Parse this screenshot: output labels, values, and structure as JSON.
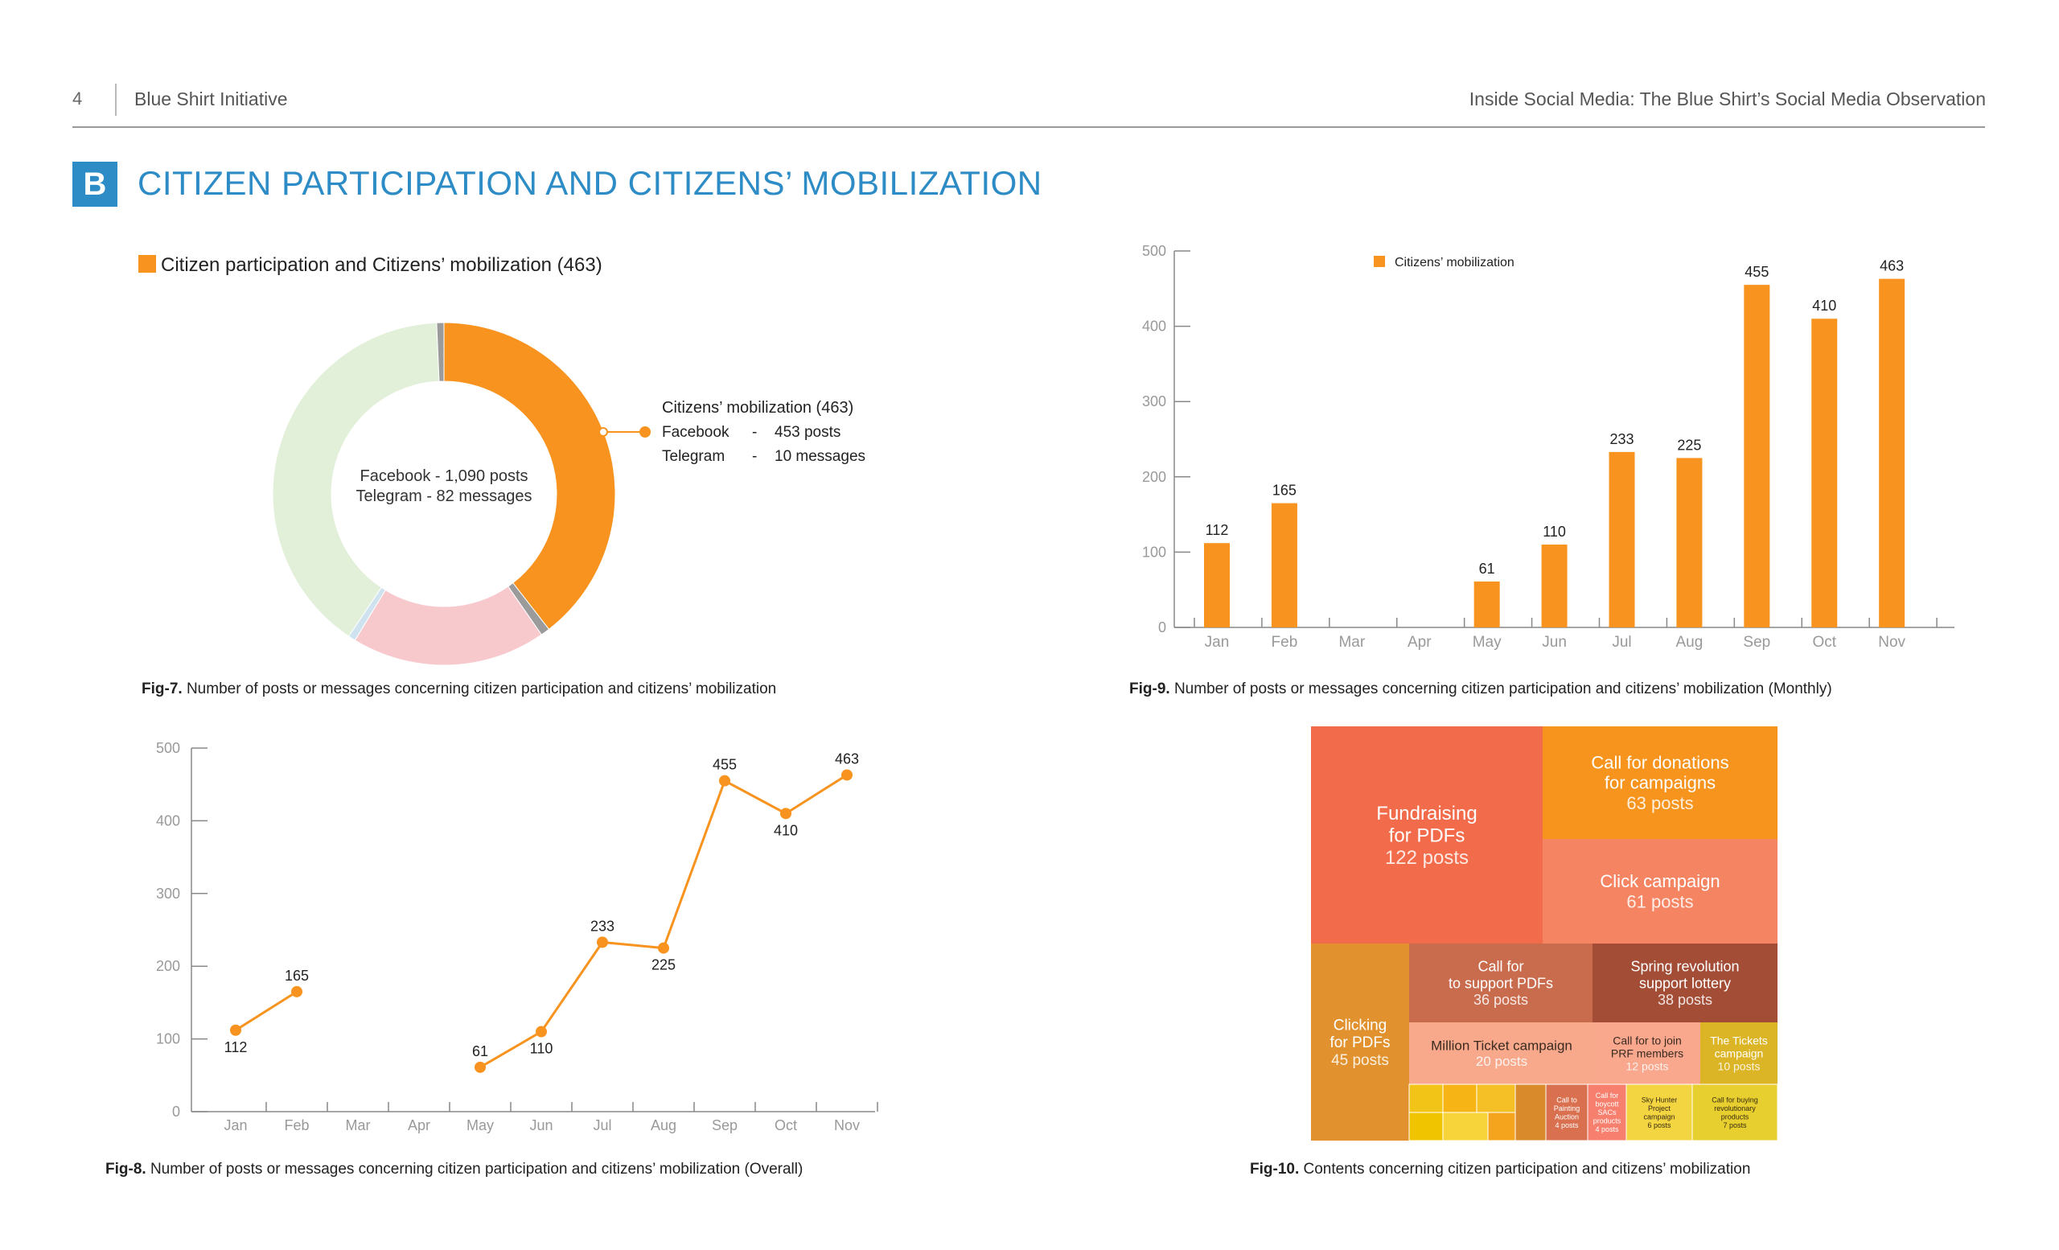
{
  "header": {
    "page_number": "4",
    "left_title": "Blue Shirt Initiative",
    "right_title": "Inside Social Media: The Blue Shirt’s Social Media Observation"
  },
  "section": {
    "badge": "B",
    "title": "CITIZEN PARTICIPATION AND CITIZENS’ MOBILIZATION"
  },
  "colors": {
    "accent_blue": "#2d8cc6",
    "orange": "#f7931e",
    "light_green": "#e2efd9",
    "light_pink": "#f7c9cc",
    "light_blue": "#cfe2f0",
    "axis_gray": "#888888"
  },
  "figures": {
    "fig7": {
      "label": "Fig-7.",
      "text": "Number of posts or messages concerning citizen participation and citizens’ mobilization"
    },
    "fig8": {
      "label": "Fig-8.",
      "text": "Number of posts or messages concerning citizen participation and citizens’ mobilization (Overall)"
    },
    "fig9": {
      "label": "Fig-9.",
      "text": "Number of posts or messages concerning citizen participation and citizens’ mobilization  (Monthly)"
    },
    "fig10": {
      "label": "Fig-10.",
      "text": "Contents concerning citizen participation and citizens’ mobilization"
    }
  },
  "chart_data": [
    {
      "id": "fig7",
      "type": "pie",
      "legend": "Citizen participation and Citizens’ mobilization (463)",
      "center_lines": [
        "Facebook - 1,090 posts",
        "Telegram - 82 messages"
      ],
      "callout": {
        "title": "Citizens’ mobilization (463)",
        "rows": [
          {
            "platform": "Facebook",
            "dash": "-",
            "value": "453 posts"
          },
          {
            "platform": "Telegram",
            "dash": "-",
            "value": "10 messages"
          }
        ]
      },
      "slices": [
        {
          "value": 463,
          "color": "#f7931e"
        },
        {
          "value": 10,
          "color": "#9b9b9b"
        },
        {
          "value": 215,
          "color": "#f7c9cc"
        },
        {
          "value": 8,
          "color": "#cfe2f0"
        },
        {
          "value": 468,
          "color": "#e2efd9"
        },
        {
          "value": 8,
          "color": "#9b9b9b"
        }
      ]
    },
    {
      "id": "fig8",
      "type": "line",
      "categories": [
        "Jan",
        "Feb",
        "Mar",
        "Apr",
        "May",
        "Jun",
        "Jul",
        "Aug",
        "Sep",
        "Oct",
        "Nov"
      ],
      "values": [
        112,
        165,
        null,
        null,
        61,
        110,
        233,
        225,
        455,
        410,
        463
      ],
      "ylim": [
        0,
        500
      ],
      "yticks": [
        0,
        100,
        200,
        300,
        400,
        500
      ],
      "color": "#f7931e"
    },
    {
      "id": "fig9",
      "type": "bar",
      "legend": "Citizens’ mobilization",
      "categories": [
        "Jan",
        "Feb",
        "Mar",
        "Apr",
        "May",
        "Jun",
        "Jul",
        "Aug",
        "Sep",
        "Oct",
        "Nov"
      ],
      "values": [
        112,
        165,
        null,
        null,
        61,
        110,
        233,
        225,
        455,
        410,
        463
      ],
      "ylim": [
        0,
        500
      ],
      "yticks": [
        0,
        100,
        200,
        300,
        400,
        500
      ],
      "color": "#f7931e"
    },
    {
      "id": "fig10",
      "type": "treemap",
      "main": [
        {
          "lines": [
            "Fundraising",
            "for PDFs"
          ],
          "sub": "122 posts",
          "value": 122,
          "color": "#f26b4a"
        },
        {
          "lines": [
            "Call for donations",
            "for campaigns"
          ],
          "sub": "63 posts",
          "value": 63,
          "color": "#f7941d"
        },
        {
          "lines": [
            "Click campaign"
          ],
          "sub": "61 posts",
          "value": 61,
          "color": "#f58562"
        },
        {
          "lines": [
            "Clicking",
            "for PDFs"
          ],
          "sub": "45 posts",
          "value": 45,
          "color": "#e1922f"
        },
        {
          "lines": [
            "Call for",
            "to support PDFs"
          ],
          "sub": "36 posts",
          "value": 36,
          "color": "#c96c4e"
        },
        {
          "lines": [
            "Spring revolution",
            "support lottery"
          ],
          "sub": "38 posts",
          "value": 38,
          "color": "#a34d37"
        },
        {
          "lines": [
            "Million Ticket campaign"
          ],
          "sub": "20 posts",
          "value": 20,
          "color": "#f8a98c"
        },
        {
          "lines": [
            "Call for to join",
            "PRF members"
          ],
          "sub": "12 posts",
          "value": 12,
          "color": "#f9a78d"
        },
        {
          "lines": [
            "The Tickets",
            "campaign"
          ],
          "sub": "10 posts",
          "value": 10,
          "color": "#dcb526"
        }
      ],
      "small": [
        {
          "lines": [
            "Call to",
            "Painting",
            "Auction"
          ],
          "sub": "4 posts",
          "color": "#d9704f"
        },
        {
          "lines": [
            "Call for",
            "boycott",
            "SACs",
            "products"
          ],
          "sub": "4 posts",
          "color": "#f77f6e"
        },
        {
          "lines": [
            "Sky Hunter",
            "Project",
            "campaign"
          ],
          "sub": "6 posts",
          "color": "#f3d542"
        },
        {
          "lines": [
            "Call for buying",
            "revolutionary",
            "products"
          ],
          "sub": "7 posts",
          "color": "#e6cf2e"
        }
      ]
    }
  ]
}
